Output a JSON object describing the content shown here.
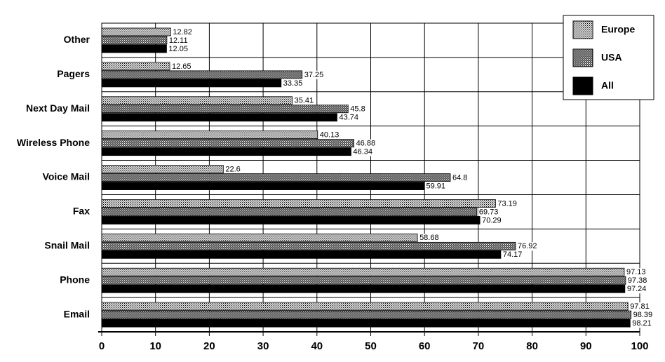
{
  "chart_data": {
    "type": "bar",
    "orientation": "horizontal",
    "categories": [
      "Other",
      "Pagers",
      "Next Day Mail",
      "Wireless Phone",
      "Voice Mail",
      "Fax",
      "Snail Mail",
      "Phone",
      "Email"
    ],
    "series": [
      {
        "name": "Europe",
        "color": "#dcdcdc",
        "values": [
          12.82,
          12.65,
          35.41,
          40.13,
          22.6,
          73.19,
          58.68,
          97.13,
          97.81
        ]
      },
      {
        "name": "USA",
        "color": "#505050",
        "values": [
          12.11,
          37.25,
          45.8,
          46.88,
          64.8,
          69.73,
          76.92,
          97.38,
          98.39
        ]
      },
      {
        "name": "All",
        "color": "#000000",
        "values": [
          12.05,
          33.35,
          43.74,
          46.34,
          59.91,
          70.29,
          74.17,
          97.24,
          98.21
        ]
      }
    ],
    "xlim": [
      0,
      100
    ],
    "xticks": [
      0,
      10,
      20,
      30,
      40,
      50,
      60,
      70,
      80,
      90,
      100
    ],
    "grid": true,
    "legend": "upper right"
  }
}
